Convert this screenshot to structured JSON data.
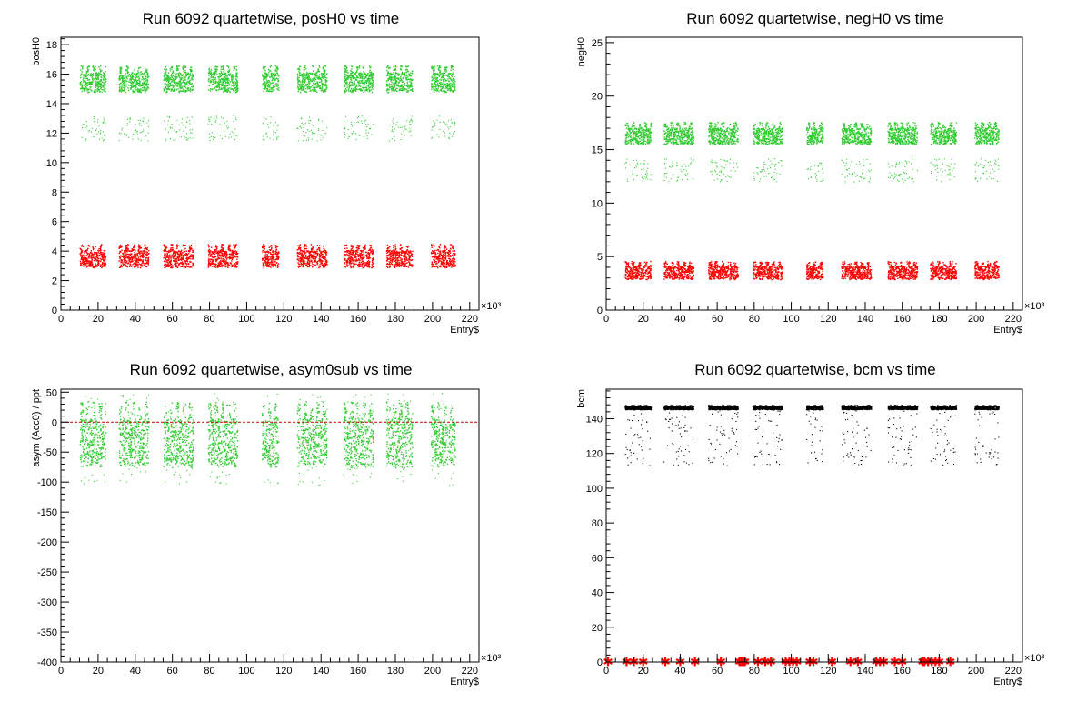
{
  "chart_data": [
    {
      "type": "scatter",
      "title": "Run 6092 quartetwise, posH0 vs time",
      "xlabel": "Entry$",
      "ylabel": "posH0",
      "x_multiplier": "×10³",
      "xlim": [
        0,
        225
      ],
      "ylim": [
        0,
        18.5
      ],
      "xticks": [
        0,
        20,
        40,
        60,
        80,
        100,
        120,
        140,
        160,
        180,
        200,
        220
      ],
      "yticks": [
        0,
        2,
        4,
        6,
        8,
        10,
        12,
        14,
        16,
        18
      ],
      "x_segments": [
        [
          10,
          24
        ],
        [
          31,
          47
        ],
        [
          55,
          71
        ],
        [
          79,
          95
        ],
        [
          108,
          117
        ],
        [
          127,
          143
        ],
        [
          152,
          168
        ],
        [
          175,
          189
        ],
        [
          199,
          212
        ]
      ],
      "series": [
        {
          "color": "#33cc33",
          "band": [
            14.8,
            16.6
          ],
          "sparse": [
            11.5,
            13.2
          ]
        },
        {
          "color": "#ff0000",
          "band": [
            2.9,
            4.5
          ],
          "sparse": []
        }
      ]
    },
    {
      "type": "scatter",
      "title": "Run 6092 quartetwise, negH0 vs time",
      "xlabel": "Entry$",
      "ylabel": "negH0",
      "x_multiplier": "×10³",
      "xlim": [
        0,
        225
      ],
      "ylim": [
        0,
        25.5
      ],
      "xticks": [
        0,
        20,
        40,
        60,
        80,
        100,
        120,
        140,
        160,
        180,
        200,
        220
      ],
      "yticks": [
        0,
        5,
        10,
        15,
        20,
        25
      ],
      "x_segments": [
        [
          10,
          24
        ],
        [
          31,
          47
        ],
        [
          55,
          71
        ],
        [
          79,
          95
        ],
        [
          108,
          117
        ],
        [
          127,
          143
        ],
        [
          152,
          168
        ],
        [
          175,
          189
        ],
        [
          199,
          212
        ]
      ],
      "series": [
        {
          "color": "#33cc33",
          "band": [
            15.5,
            17.6
          ],
          "sparse": [
            12.0,
            14.2
          ]
        },
        {
          "color": "#ff0000",
          "band": [
            2.9,
            4.6
          ],
          "sparse": []
        }
      ]
    },
    {
      "type": "scatter",
      "title": "Run 6092 quartetwise, asym0sub vs time",
      "xlabel": "Entry$",
      "ylabel": "asym (Acc0) / ppt",
      "x_multiplier": "×10³",
      "xlim": [
        0,
        225
      ],
      "ylim": [
        -400,
        55
      ],
      "xticks": [
        0,
        20,
        40,
        60,
        80,
        100,
        120,
        140,
        160,
        180,
        200,
        220
      ],
      "yticks": [
        -400,
        -350,
        -300,
        -250,
        -200,
        -150,
        -100,
        -50,
        0,
        50
      ],
      "x_segments": [
        [
          10,
          24
        ],
        [
          31,
          47
        ],
        [
          55,
          71
        ],
        [
          79,
          95
        ],
        [
          108,
          117
        ],
        [
          127,
          143
        ],
        [
          152,
          168
        ],
        [
          175,
          189
        ],
        [
          199,
          212
        ]
      ],
      "reference_line": {
        "y": 0,
        "color": "#cc0000"
      },
      "series": [
        {
          "color": "#33cc33",
          "band": [
            -75,
            35
          ],
          "sparse": [
            -105,
            50
          ]
        }
      ]
    },
    {
      "type": "scatter",
      "title": "Run 6092 quartetwise, bcm vs time",
      "xlabel": "Entry$",
      "ylabel": "bcm",
      "x_multiplier": "×10³",
      "xlim": [
        0,
        225
      ],
      "ylim": [
        0,
        157
      ],
      "xticks": [
        0,
        20,
        40,
        60,
        80,
        100,
        120,
        140,
        160,
        180,
        200,
        220
      ],
      "yticks": [
        0,
        20,
        40,
        60,
        80,
        100,
        120,
        140
      ],
      "x_segments": [
        [
          10,
          24
        ],
        [
          31,
          47
        ],
        [
          55,
          71
        ],
        [
          79,
          95
        ],
        [
          108,
          117
        ],
        [
          127,
          143
        ],
        [
          152,
          168
        ],
        [
          175,
          189
        ],
        [
          199,
          212
        ]
      ],
      "series": [
        {
          "color": "#000000",
          "band": [
            145.5,
            148
          ],
          "sparse": [
            113,
            145
          ]
        },
        {
          "color": "#ff0000",
          "marker": "star",
          "x": [
            1,
            11,
            15,
            20,
            32,
            40,
            48,
            62,
            72,
            73,
            74,
            75,
            82,
            86,
            89,
            97,
            99,
            101,
            103,
            110,
            112,
            122,
            132,
            136,
            146,
            148,
            150,
            156,
            160,
            171,
            172,
            174,
            176,
            178,
            180,
            186
          ],
          "y": [
            0.3,
            0.3,
            0.3,
            0.3,
            0.3,
            0.3,
            0.3,
            0.3,
            0.3,
            0.3,
            0.3,
            0.3,
            0.3,
            0.3,
            0.3,
            0.3,
            0.3,
            0.3,
            0.3,
            0.3,
            0.3,
            0.3,
            0.3,
            0.3,
            0.3,
            0.3,
            0.3,
            0.3,
            0.3,
            0.3,
            0.3,
            0.3,
            0.3,
            0.3,
            0.3,
            0.3
          ]
        }
      ]
    }
  ]
}
